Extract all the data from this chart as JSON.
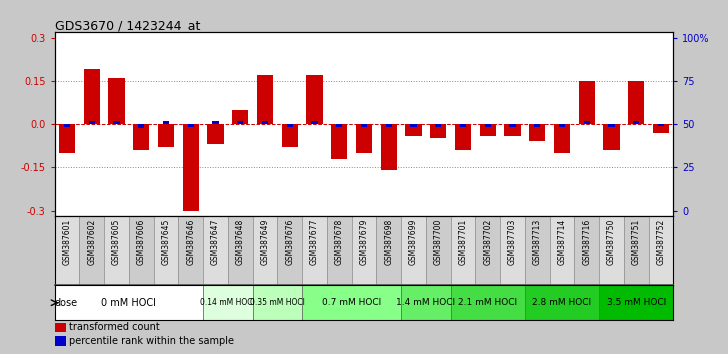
{
  "title": "GDS3670 / 1423244_at",
  "samples": [
    "GSM387601",
    "GSM387602",
    "GSM387605",
    "GSM387606",
    "GSM387645",
    "GSM387646",
    "GSM387647",
    "GSM387648",
    "GSM387649",
    "GSM387676",
    "GSM387677",
    "GSM387678",
    "GSM387679",
    "GSM387698",
    "GSM387699",
    "GSM387700",
    "GSM387701",
    "GSM387702",
    "GSM387703",
    "GSM387713",
    "GSM387714",
    "GSM387716",
    "GSM387750",
    "GSM387751",
    "GSM387752"
  ],
  "transformed_count": [
    -0.1,
    0.19,
    0.16,
    -0.09,
    -0.08,
    -0.3,
    -0.07,
    0.05,
    0.17,
    -0.08,
    0.17,
    -0.12,
    -0.1,
    -0.16,
    -0.04,
    -0.05,
    -0.09,
    -0.04,
    -0.04,
    -0.06,
    -0.1,
    0.15,
    -0.09,
    0.15,
    -0.03
  ],
  "percentile_rank": [
    -0.01,
    0.012,
    0.01,
    -0.015,
    0.01,
    -0.01,
    0.01,
    0.01,
    0.01,
    -0.01,
    0.01,
    -0.01,
    -0.01,
    -0.01,
    -0.01,
    -0.01,
    -0.01,
    -0.01,
    -0.01,
    -0.01,
    -0.01,
    0.01,
    -0.01,
    0.01,
    -0.005
  ],
  "doses": [
    {
      "label": "0 mM HOCl",
      "color": "#ffffff",
      "start": 0,
      "end": 6,
      "fontsize": 7.0
    },
    {
      "label": "0.14 mM HOCl",
      "color": "#ddffdd",
      "start": 6,
      "end": 8,
      "fontsize": 5.5
    },
    {
      "label": "0.35 mM HOCl",
      "color": "#bbffbb",
      "start": 8,
      "end": 10,
      "fontsize": 5.5
    },
    {
      "label": "0.7 mM HOCl",
      "color": "#88ff88",
      "start": 10,
      "end": 14,
      "fontsize": 6.5
    },
    {
      "label": "1.4 mM HOCl",
      "color": "#66ee66",
      "start": 14,
      "end": 16,
      "fontsize": 6.5
    },
    {
      "label": "2.1 mM HOCl",
      "color": "#44dd44",
      "start": 16,
      "end": 19,
      "fontsize": 6.5
    },
    {
      "label": "2.8 mM HOCl",
      "color": "#22cc22",
      "start": 19,
      "end": 22,
      "fontsize": 6.5
    },
    {
      "label": "3.5 mM HOCl",
      "color": "#00bb00",
      "start": 22,
      "end": 25,
      "fontsize": 6.5
    }
  ],
  "bar_color_red": "#cc0000",
  "bar_color_blue": "#0000cc",
  "ylim": [
    -0.32,
    0.32
  ],
  "yticks_left": [
    -0.3,
    -0.15,
    0.0,
    0.15,
    0.3
  ],
  "right_ticks_pos": [
    -0.3,
    -0.15,
    0.0,
    0.15,
    0.3
  ],
  "right_tick_labels": [
    "0",
    "25",
    "50",
    "75",
    "100%"
  ],
  "fig_bg": "#c8c8c8",
  "plot_bg": "#ffffff",
  "xlab_bg": "#c8c8c8",
  "dose_bg": "#c8c8c8"
}
